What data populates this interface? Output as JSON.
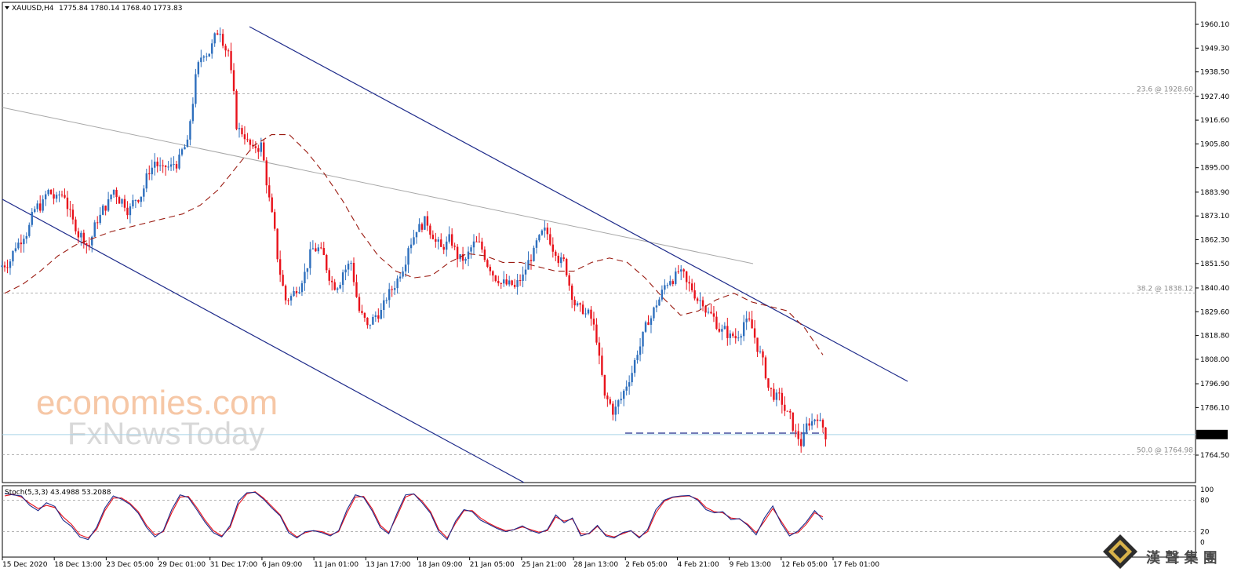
{
  "header": {
    "symbol": "XAUUSD,H4",
    "ohlc": "1775.84 1780.14 1768.40 1773.83",
    "menu_icon": "triangle-down-icon"
  },
  "price_axis": {
    "ticks": [
      "1960.10",
      "1949.30",
      "1938.50",
      "1927.40",
      "1916.60",
      "1905.80",
      "1895.00",
      "1883.90",
      "1873.10",
      "1862.30",
      "1851.50",
      "1840.40",
      "1829.60",
      "1818.80",
      "1808.00",
      "1796.90",
      "1786.10",
      "1764.50"
    ],
    "current_price": "1773.83"
  },
  "time_axis": {
    "labels": [
      "15 Dec 2020",
      "18 Dec 13:00",
      "23 Dec 05:00",
      "29 Dec 01:00",
      "31 Dec 17:00",
      "6 Jan 09:00",
      "11 Jan 01:00",
      "13 Jan 17:00",
      "18 Jan 09:00",
      "21 Jan 05:00",
      "25 Jan 21:00",
      "28 Jan 13:00",
      "2 Feb 05:00",
      "4 Feb 21:00",
      "9 Feb 13:00",
      "12 Feb 05:00",
      "17 Feb 01:00"
    ]
  },
  "fib_levels": [
    {
      "label": "23.6 @ 1928.60",
      "price": 1928.6
    },
    {
      "label": "38.2 @ 1838.12",
      "price": 1838.12
    },
    {
      "label": "50.0 @ 1764.98",
      "price": 1764.98
    }
  ],
  "stoch": {
    "title": "Stoch(5,3,3) 43.4988 53.2088",
    "levels": [
      "100",
      "80",
      "20",
      "0"
    ]
  },
  "watermark": {
    "line1": "economies.com",
    "line2": "FxNewsToday"
  },
  "brand": {
    "text": "漢 聲 集 團",
    "logo_icon": "diamond-logo-icon"
  },
  "colors": {
    "bull": "#2e6fbd",
    "bear": "#e8121b",
    "channel": "#1d2a8a",
    "trend": "#a8a8a8",
    "ma": "#9a1a10",
    "stoch_main": "#1d2a8a",
    "stoch_signal": "#e8121b"
  },
  "chart_data": {
    "type": "candlestick",
    "title": "XAUUSD,H4",
    "ylim": [
      1764.5,
      1960.1
    ],
    "x": [
      "15 Dec 2020",
      "18 Dec 13:00",
      "23 Dec 05:00",
      "29 Dec 01:00",
      "31 Dec 17:00",
      "6 Jan 09:00",
      "11 Jan 01:00",
      "13 Jan 17:00",
      "18 Jan 09:00",
      "21 Jan 05:00",
      "25 Jan 21:00",
      "28 Jan 13:00",
      "2 Feb 05:00",
      "4 Feb 21:00",
      "9 Feb 13:00",
      "12 Feb 05:00",
      "17 Feb 01:00"
    ],
    "close_path": [
      1852,
      1860,
      1865,
      1872,
      1878,
      1884,
      1880,
      1883,
      1870,
      1864,
      1860,
      1872,
      1878,
      1885,
      1880,
      1876,
      1882,
      1890,
      1898,
      1893,
      1895,
      1898,
      1905,
      1935,
      1948,
      1950,
      1958,
      1948,
      1915,
      1910,
      1902,
      1905,
      1880,
      1855,
      1835,
      1838,
      1845,
      1855,
      1858,
      1850,
      1842,
      1848,
      1852,
      1830,
      1822,
      1828,
      1832,
      1840,
      1848,
      1860,
      1868,
      1870,
      1865,
      1858,
      1862,
      1855,
      1852,
      1860,
      1858,
      1850,
      1845,
      1842,
      1840,
      1845,
      1855,
      1862,
      1865,
      1858,
      1852,
      1838,
      1830,
      1828,
      1818,
      1790,
      1785,
      1790,
      1800,
      1812,
      1822,
      1830,
      1838,
      1845,
      1848,
      1842,
      1838,
      1835,
      1828,
      1822,
      1820,
      1818,
      1825,
      1822,
      1810,
      1795,
      1790,
      1785,
      1778,
      1770,
      1780,
      1783,
      1774
    ],
    "indicators": {
      "ma_dashed": [
        1838,
        1842,
        1848,
        1855,
        1860,
        1863,
        1866,
        1868,
        1870,
        1872,
        1874,
        1878,
        1885,
        1895,
        1905,
        1910,
        1910,
        1902,
        1892,
        1880,
        1866,
        1855,
        1848,
        1845,
        1846,
        1852,
        1856,
        1855,
        1852,
        1852,
        1850,
        1848,
        1848,
        1852,
        1854,
        1852,
        1845,
        1836,
        1828,
        1830,
        1835,
        1838,
        1834,
        1832,
        1830,
        1822,
        1810
      ],
      "stoch_main": [
        93,
        90,
        88,
        70,
        60,
        75,
        68,
        42,
        30,
        10,
        5,
        28,
        65,
        88,
        82,
        72,
        55,
        28,
        10,
        22,
        62,
        90,
        85,
        62,
        38,
        18,
        10,
        32,
        78,
        94,
        95,
        82,
        65,
        50,
        18,
        8,
        20,
        22,
        18,
        12,
        22,
        62,
        90,
        85,
        60,
        28,
        16,
        55,
        90,
        92,
        75,
        55,
        20,
        5,
        40,
        62,
        58,
        42,
        34,
        26,
        20,
        24,
        31,
        22,
        17,
        24,
        52,
        37,
        46,
        12,
        17,
        32,
        12,
        8,
        18,
        22,
        8,
        24,
        62,
        80,
        86,
        88,
        89,
        80,
        62,
        56,
        58,
        43,
        45,
        32,
        14,
        46,
        69,
        36,
        12,
        21,
        38,
        60,
        43
      ],
      "stoch_signal": [
        88,
        91,
        86,
        74,
        64,
        70,
        66,
        48,
        34,
        14,
        8,
        24,
        60,
        84,
        84,
        74,
        58,
        32,
        14,
        20,
        56,
        86,
        87,
        66,
        42,
        22,
        12,
        28,
        72,
        92,
        96,
        84,
        68,
        52,
        22,
        10,
        18,
        22,
        20,
        14,
        20,
        56,
        86,
        87,
        64,
        32,
        18,
        50,
        86,
        92,
        78,
        58,
        24,
        8,
        36,
        60,
        60,
        46,
        36,
        28,
        22,
        24,
        29,
        24,
        19,
        22,
        48,
        40,
        44,
        16,
        16,
        30,
        14,
        10,
        16,
        22,
        10,
        20,
        56,
        78,
        85,
        87,
        88,
        82,
        66,
        58,
        56,
        46,
        44,
        34,
        18,
        40,
        64,
        40,
        16,
        18,
        34,
        56,
        48
      ]
    }
  }
}
